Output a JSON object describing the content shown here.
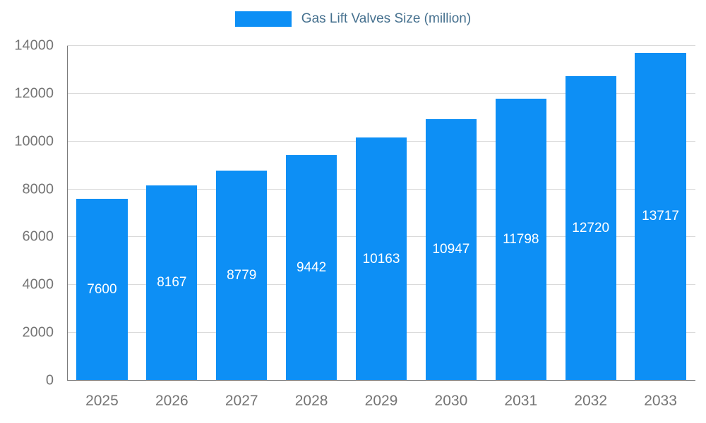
{
  "chart_data": {
    "type": "bar",
    "title": "Gas Lift Valves Size (million)",
    "categories": [
      "2025",
      "2026",
      "2027",
      "2028",
      "2029",
      "2030",
      "2031",
      "2032",
      "2033"
    ],
    "values": [
      7600,
      8167,
      8779,
      9442,
      10163,
      10947,
      11798,
      12720,
      13717
    ],
    "xlabel": "",
    "ylabel": "",
    "ylim": [
      0,
      14000
    ],
    "yticks": [
      0,
      2000,
      4000,
      6000,
      8000,
      10000,
      12000,
      14000
    ],
    "grid": "horizontal",
    "legend_position": "top-center",
    "bar_color": "#0d8ff5",
    "value_label_color": "#ffffff",
    "axis_text_color": "#757575",
    "legend_text_color": "#45708e",
    "gridline_color": "#dadada",
    "axis_line_color": "#787878",
    "background_color": "#ffffff"
  }
}
